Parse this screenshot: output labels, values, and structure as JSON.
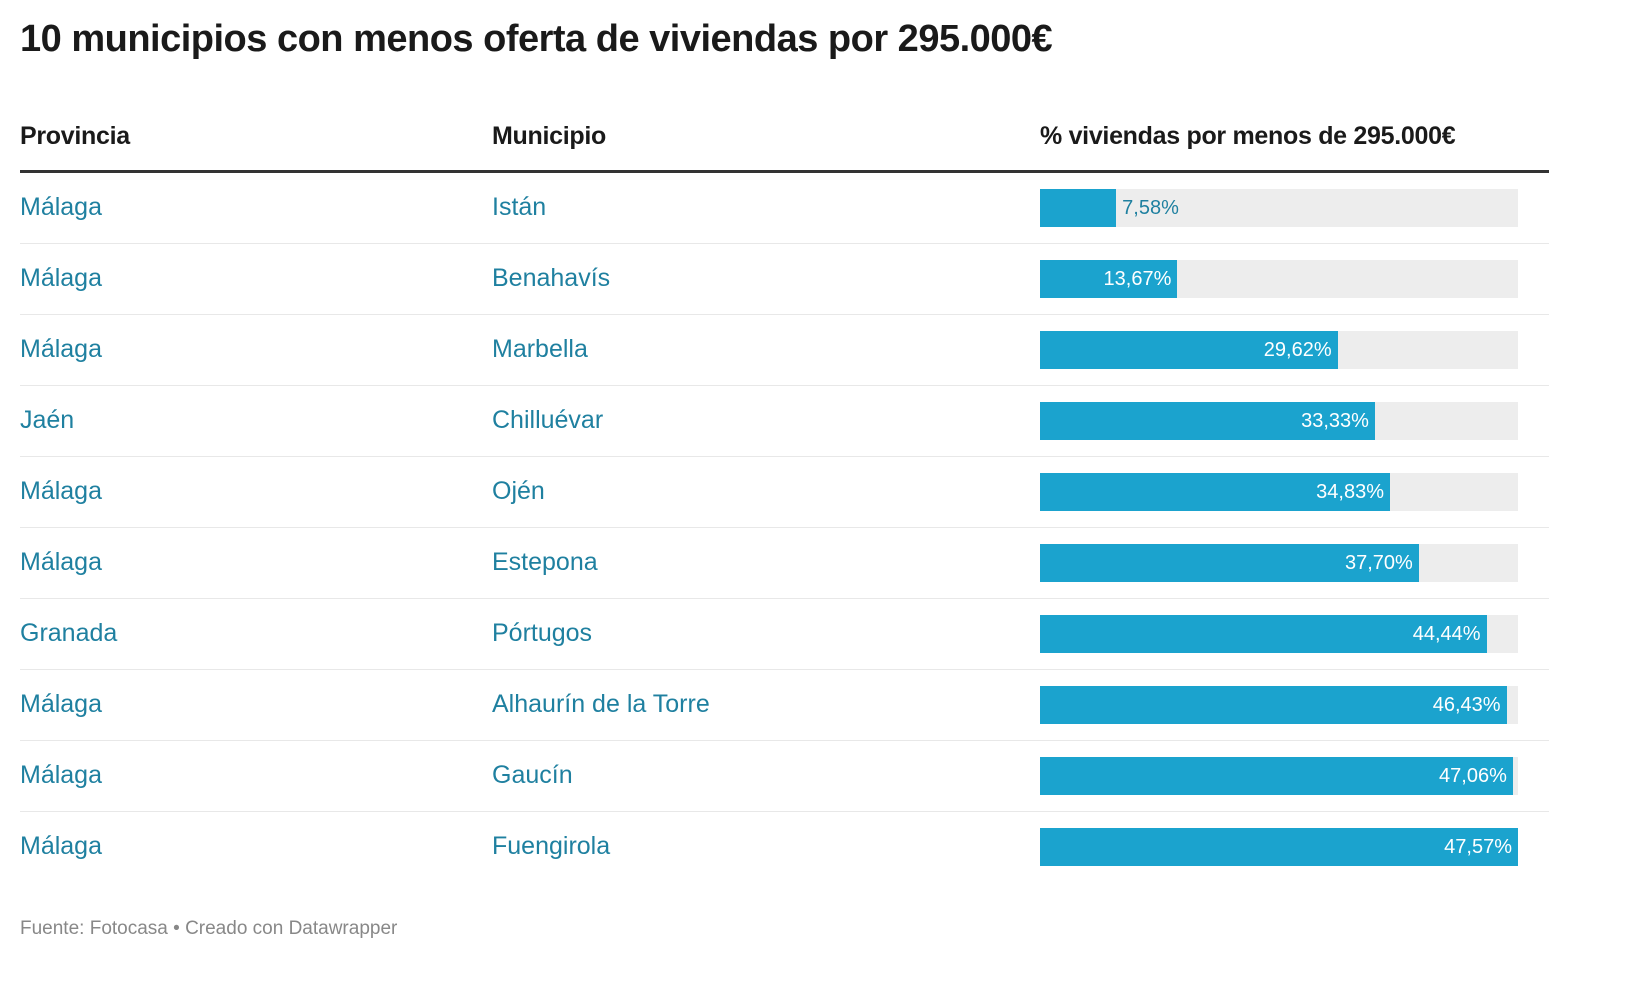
{
  "title": "10 municipios con menos oferta de viviendas por 295.000€",
  "footer": "Fuente: Fotocasa • Creado con Datawrapper",
  "colors": {
    "bar": "#1ba3ce",
    "track": "#ededed",
    "text": "#1f80a0"
  },
  "chart_data": {
    "type": "table",
    "title": "10 municipios con menos oferta de viviendas por 295.000€",
    "columns": [
      "Provincia",
      "Municipio",
      "% viviendas por menos de 295.000€"
    ],
    "bar_column": "% viviendas por menos de 295.000€",
    "bar_max": 47.57,
    "rows": [
      {
        "provincia": "Málaga",
        "municipio": "Istán",
        "value": 7.58,
        "label": "7,58%"
      },
      {
        "provincia": "Málaga",
        "municipio": "Benahavís",
        "value": 13.67,
        "label": "13,67%"
      },
      {
        "provincia": "Málaga",
        "municipio": "Marbella",
        "value": 29.62,
        "label": "29,62%"
      },
      {
        "provincia": "Jaén",
        "municipio": "Chilluévar",
        "value": 33.33,
        "label": "33,33%"
      },
      {
        "provincia": "Málaga",
        "municipio": "Ojén",
        "value": 34.83,
        "label": "34,83%"
      },
      {
        "provincia": "Málaga",
        "municipio": "Estepona",
        "value": 37.7,
        "label": "37,70%"
      },
      {
        "provincia": "Granada",
        "municipio": "Pórtugos",
        "value": 44.44,
        "label": "44,44%"
      },
      {
        "provincia": "Málaga",
        "municipio": "Alhaurín de la Torre",
        "value": 46.43,
        "label": "46,43%"
      },
      {
        "provincia": "Málaga",
        "municipio": "Gaucín",
        "value": 47.06,
        "label": "47,06%"
      },
      {
        "provincia": "Málaga",
        "municipio": "Fuengirola",
        "value": 47.57,
        "label": "47,57%"
      }
    ]
  }
}
